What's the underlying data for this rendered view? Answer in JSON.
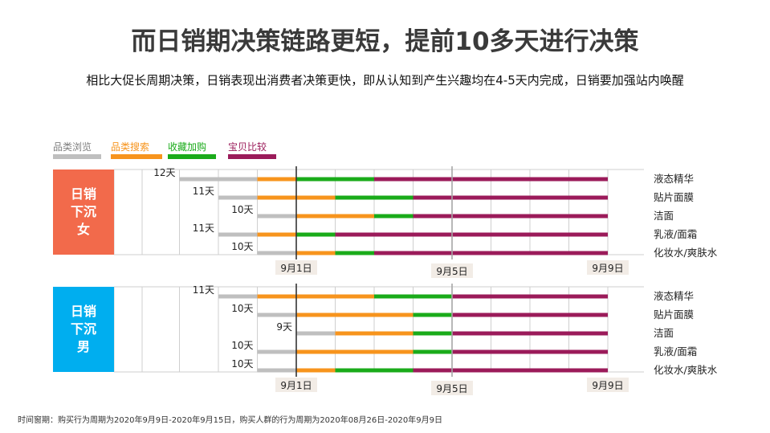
{
  "title": "而日销期决策链路更短，提前10多天进行决策",
  "subtitle": "相比大促长周期决策，日销表现出消费者决策更快，即从认知到产生兴趣均在4-5天内完成，日销要加强站内唤醒",
  "footnote": "时间窗期：购买行为周期为2020年9月9日-2020年9月15日，购买人群的行为周期为2020年08月26日-2020年9月9日",
  "colors": {
    "browse": "#bfbfbf",
    "search": "#f7941d",
    "collect": "#1aab1a",
    "compare": "#9b1b5a",
    "female_tag": "#f26a4b",
    "male_tag": "#00aeef"
  },
  "legend": [
    {
      "key": "browse",
      "label": "品类浏览"
    },
    {
      "key": "search",
      "label": "品类搜索"
    },
    {
      "key": "collect",
      "label": "收藏加购"
    },
    {
      "key": "compare",
      "label": "宝贝比较"
    }
  ],
  "chart_data": {
    "type": "bar",
    "subtype": "stacked-timeline",
    "x_unit": "date",
    "x_range": [
      "2020-08-29",
      "2020-09-09"
    ],
    "date_markers": [
      {
        "label": "9月1日",
        "date": "2020-09-01",
        "style": "solid"
      },
      {
        "label": "9月5日",
        "date": "2020-09-05",
        "style": "dashed"
      },
      {
        "label": "9月9日",
        "date": "2020-09-09",
        "style": "none"
      }
    ],
    "stages": [
      "browse",
      "search",
      "collect",
      "compare"
    ],
    "groups": [
      {
        "label": "日销下沉女",
        "label_lines": [
          "日销",
          "下沉",
          "女"
        ],
        "color_key": "female_tag",
        "rows": [
          {
            "category": "液态精华",
            "duration": "12天",
            "start": "2020-08-29",
            "stage_ends": [
              "2020-08-31",
              "2020-09-01",
              "2020-09-03",
              "2020-09-09"
            ]
          },
          {
            "category": "贴片面膜",
            "duration": "11天",
            "start": "2020-08-30",
            "stage_ends": [
              "2020-08-31",
              "2020-09-02",
              "2020-09-04",
              "2020-09-09"
            ]
          },
          {
            "category": "洁面",
            "duration": "10天",
            "start": "2020-08-31",
            "stage_ends": [
              "2020-09-01",
              "2020-09-03",
              "2020-09-04",
              "2020-09-09"
            ]
          },
          {
            "category": "乳液/面霜",
            "duration": "11天",
            "start": "2020-08-30",
            "stage_ends": [
              "2020-08-31",
              "2020-09-01",
              "2020-09-02",
              "2020-09-09"
            ]
          },
          {
            "category": "化妆水/爽肤水",
            "duration": "10天",
            "start": "2020-08-31",
            "stage_ends": [
              "2020-09-01",
              "2020-09-02",
              "2020-09-03",
              "2020-09-09"
            ]
          }
        ]
      },
      {
        "label": "日销下沉男",
        "label_lines": [
          "日销",
          "下沉",
          "男"
        ],
        "color_key": "male_tag",
        "rows": [
          {
            "category": "液态精华",
            "duration": "11天",
            "start": "2020-08-30",
            "stage_ends": [
              "2020-08-31",
              "2020-09-03",
              "2020-09-05",
              "2020-09-09"
            ]
          },
          {
            "category": "贴片面膜",
            "duration": "10天",
            "start": "2020-08-31",
            "stage_ends": [
              "2020-09-01",
              "2020-09-04",
              "2020-09-05",
              "2020-09-09"
            ]
          },
          {
            "category": "洁面",
            "duration": "9天",
            "start": "2020-09-01",
            "stage_ends": [
              "2020-09-02",
              "2020-09-04",
              "2020-09-05",
              "2020-09-09"
            ]
          },
          {
            "category": "乳液/面霜",
            "duration": "10天",
            "start": "2020-08-31",
            "stage_ends": [
              "2020-09-01",
              "2020-09-04",
              "2020-09-05",
              "2020-09-09"
            ]
          },
          {
            "category": "化妆水/爽肤水",
            "duration": "10天",
            "start": "2020-08-31",
            "stage_ends": [
              "2020-09-01",
              "2020-09-02",
              "2020-09-04",
              "2020-09-09"
            ]
          }
        ]
      }
    ]
  }
}
